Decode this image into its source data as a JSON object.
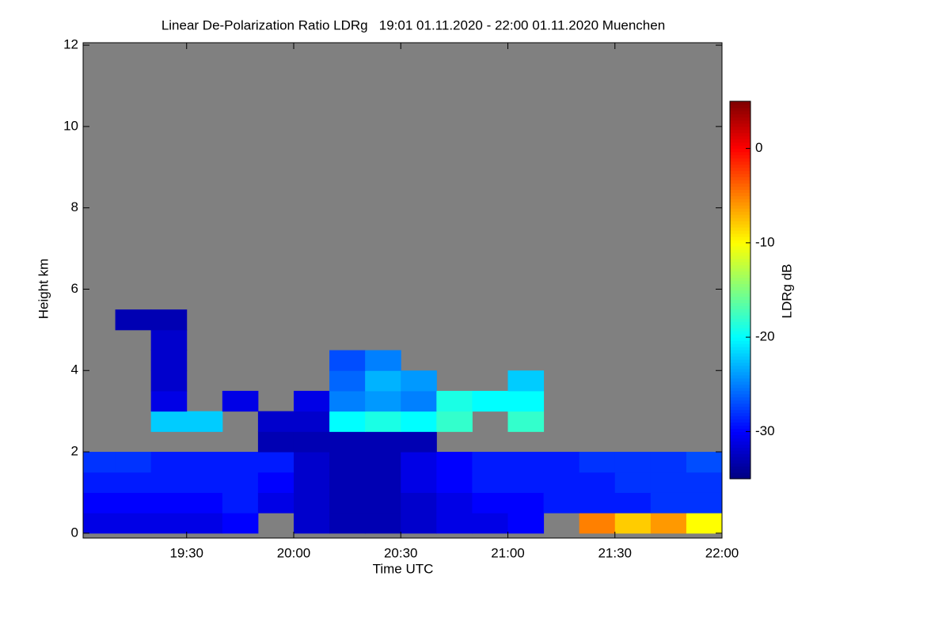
{
  "chart_data": {
    "type": "heatmap",
    "title": "Linear De-Polarization Ratio LDRg   19:01 01.11.2020 - 22:00 01.11.2020 Muenchen",
    "xlabel": "Time UTC",
    "ylabel": "Height km",
    "colorbar_label": "LDRg dB",
    "xlim": [
      19.0167,
      22
    ],
    "xticks": [
      {
        "value": 19.5,
        "label": "19:30"
      },
      {
        "value": 20,
        "label": "20:00"
      },
      {
        "value": 20.5,
        "label": "20:30"
      },
      {
        "value": 21,
        "label": "21:00"
      },
      {
        "value": 21.5,
        "label": "21:30"
      },
      {
        "value": 22,
        "label": "22:00"
      }
    ],
    "ylim": [
      -0.12,
      12.06
    ],
    "yticks": [
      0,
      2,
      4,
      6,
      8,
      10,
      12
    ],
    "zlim": [
      -35,
      5
    ],
    "zticks": [
      -30,
      -20,
      -10,
      0
    ],
    "colormap": "jet",
    "missing_color": "#808080",
    "xbins": [
      19.0167,
      19.1667,
      19.3333,
      19.5,
      19.6667,
      19.8333,
      20,
      20.1667,
      20.3333,
      20.5,
      20.6667,
      20.8333,
      21,
      21.1667,
      21.3333,
      21.5,
      21.6667,
      21.8333,
      22
    ],
    "ybins": [
      0,
      0.5,
      1,
      1.5,
      2,
      2.5,
      3,
      3.5,
      4,
      4.5,
      5,
      5.5
    ],
    "z": [
      [
        -31,
        -31,
        -31,
        -31,
        -30,
        null,
        -32,
        -33,
        -33,
        -32,
        -31,
        -31,
        -30,
        null,
        -5,
        -8,
        -6,
        -10
      ],
      [
        -30,
        -30,
        -30,
        -30,
        -29,
        -31,
        -32,
        -33,
        -33,
        -32,
        -31,
        -30,
        -30,
        -29,
        -29,
        -29,
        -28,
        -28
      ],
      [
        -29,
        -29,
        -29,
        -29,
        -29,
        -30,
        -32,
        -33,
        -33,
        -31,
        -30,
        -29,
        -29,
        -29,
        -29,
        -28,
        -28,
        -28
      ],
      [
        -28,
        -28,
        -29,
        -29,
        -29,
        -29,
        -32,
        -33,
        -33,
        -31,
        -30,
        -29,
        -29,
        -29,
        -28,
        -28,
        -28,
        -27
      ],
      [
        null,
        null,
        null,
        null,
        null,
        -33,
        -33,
        -33,
        -33,
        -33,
        null,
        null,
        null,
        null,
        null,
        null,
        null,
        null
      ],
      [
        null,
        null,
        -22,
        -22,
        null,
        -32,
        -32,
        -20,
        -19,
        -20,
        -18,
        null,
        -18,
        null,
        null,
        null,
        null,
        null
      ],
      [
        null,
        null,
        -31,
        null,
        -31,
        null,
        -31,
        -25,
        -24,
        -25,
        -19,
        -20,
        -20,
        null,
        null,
        null,
        null,
        null
      ],
      [
        null,
        null,
        -32,
        null,
        null,
        null,
        null,
        -26,
        -23,
        -24,
        null,
        null,
        -22,
        null,
        null,
        null,
        null,
        null
      ],
      [
        null,
        null,
        -32,
        null,
        null,
        null,
        null,
        -27,
        -25,
        null,
        null,
        null,
        null,
        null,
        null,
        null,
        null,
        null
      ],
      [
        null,
        null,
        -32,
        null,
        null,
        null,
        null,
        null,
        null,
        null,
        null,
        null,
        null,
        null,
        null,
        null,
        null,
        null
      ],
      [
        null,
        -33,
        -33,
        null,
        null,
        null,
        null,
        null,
        null,
        null,
        null,
        null,
        null,
        null,
        null,
        null,
        null,
        null
      ]
    ]
  }
}
